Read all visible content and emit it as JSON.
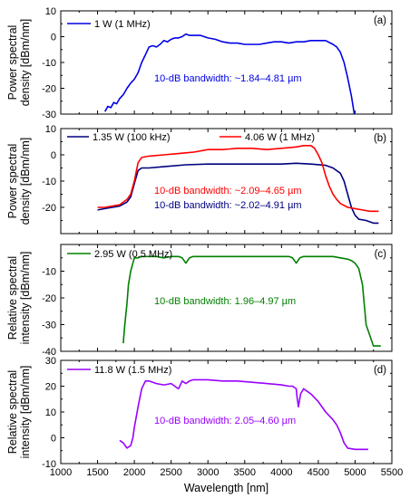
{
  "chart_data": [
    {
      "type": "line",
      "panel_label": "(a)",
      "ylabel": [
        "Power spectral",
        "density  [dBm/nm]"
      ],
      "xlim": [
        1000,
        5500
      ],
      "ylim": [
        -30,
        10
      ],
      "yticks": [
        10,
        0,
        -10,
        -20,
        -30
      ],
      "series": [
        {
          "name": "1 W (1 MHz)",
          "color": "#0000e6",
          "x": [
            1600,
            1640,
            1680,
            1720,
            1760,
            1800,
            1850,
            1900,
            1950,
            2000,
            2050,
            2100,
            2150,
            2200,
            2250,
            2300,
            2350,
            2400,
            2450,
            2500,
            2550,
            2600,
            2650,
            2700,
            2750,
            2800,
            2900,
            3000,
            3100,
            3200,
            3300,
            3400,
            3500,
            3600,
            3700,
            3800,
            3900,
            4000,
            4100,
            4200,
            4300,
            4400,
            4500,
            4600,
            4700,
            4750,
            4800,
            4850,
            4900,
            4950,
            4990
          ],
          "y": [
            -29,
            -27,
            -27.5,
            -25.5,
            -26,
            -24,
            -22.5,
            -20,
            -18,
            -16.5,
            -14,
            -10,
            -7,
            -4,
            -3.5,
            -4,
            -3,
            -1.5,
            -2,
            -1,
            -0.5,
            -0.5,
            0,
            1,
            0.5,
            0.5,
            0.5,
            -0.5,
            -1,
            -2,
            -2.5,
            -2.5,
            -3,
            -3,
            -3,
            -2.5,
            -2,
            -2,
            -2.5,
            -2,
            -2,
            -1.5,
            -1.5,
            -1.5,
            -3,
            -4,
            -6,
            -10,
            -16,
            -23,
            -30
          ]
        }
      ],
      "annotation": {
        "text": "10-dB bandwidth: ~1.84–4.81 µm",
        "color": "#0000e6"
      }
    },
    {
      "type": "line",
      "panel_label": "(b)",
      "ylabel": [
        "Power spectral",
        "density [dBm/nm]"
      ],
      "xlim": [
        1000,
        5500
      ],
      "ylim": [
        -30,
        10
      ],
      "yticks": [
        10,
        0,
        -10,
        -20
      ],
      "series": [
        {
          "name": "1.35 W (100 kHz)",
          "color": "#000080",
          "x": [
            1500,
            1600,
            1700,
            1800,
            1900,
            1950,
            2000,
            2050,
            2100,
            2200,
            2400,
            2700,
            3000,
            3500,
            4000,
            4200,
            4400,
            4600,
            4700,
            4800,
            4850,
            4900,
            4950,
            5000,
            5050,
            5150,
            5250,
            5320
          ],
          "y": [
            -21,
            -20.5,
            -20,
            -19.5,
            -18,
            -16,
            -11,
            -6,
            -5,
            -5,
            -4.5,
            -3.8,
            -3.5,
            -3.5,
            -3.5,
            -3.2,
            -3.5,
            -4,
            -5,
            -7,
            -10,
            -15,
            -20,
            -23,
            -24.5,
            -25,
            -26,
            -26
          ]
        },
        {
          "name": "4.06 W (1 MHz)",
          "color": "#ff0000",
          "x": [
            1500,
            1600,
            1700,
            1800,
            1900,
            1950,
            2000,
            2050,
            2100,
            2200,
            2400,
            2600,
            2800,
            3000,
            3200,
            3400,
            3600,
            3800,
            4000,
            4200,
            4300,
            4400,
            4450,
            4500,
            4550,
            4600,
            4650,
            4700,
            4750,
            4800,
            4900,
            5000,
            5100,
            5200,
            5320
          ],
          "y": [
            -20,
            -20,
            -19.5,
            -19,
            -17,
            -15,
            -10,
            -3,
            -1,
            -0.5,
            0,
            0.5,
            1,
            2,
            2,
            2.5,
            2.5,
            2,
            2.5,
            3,
            3.5,
            3.5,
            2.5,
            0,
            -3,
            -8,
            -12,
            -15,
            -17,
            -18.5,
            -20,
            -20.5,
            -21,
            -21.5,
            -21.5
          ]
        }
      ],
      "annotations": [
        {
          "text": "10-dB bandwidth: ~2.09–4.65 µm",
          "color": "#ff0000"
        },
        {
          "text": "10-dB bandwidth: ~2.02–4.91 µm",
          "color": "#000080"
        }
      ]
    },
    {
      "type": "line",
      "panel_label": "(c)",
      "ylabel": [
        "Relative spectral",
        "intensity [dBm/nm]"
      ],
      "xlim": [
        1000,
        5500
      ],
      "ylim": [
        -40,
        0
      ],
      "yticks": [
        -10,
        -20,
        -30,
        -40
      ],
      "series": [
        {
          "name": "2.95 W (0.5 MHz)",
          "color": "#008000",
          "x": [
            1850,
            1870,
            1900,
            1920,
            1950,
            1980,
            2000,
            2050,
            2100,
            2200,
            2300,
            2400,
            2500,
            2600,
            2650,
            2700,
            2750,
            2800,
            2900,
            3000,
            3200,
            3400,
            3600,
            3800,
            4000,
            4100,
            4150,
            4200,
            4250,
            4300,
            4400,
            4500,
            4600,
            4700,
            4800,
            4900,
            4950,
            5000,
            5050,
            5100,
            5150,
            5250,
            5350
          ],
          "y": [
            -37,
            -30,
            -22,
            -15,
            -10,
            -7,
            -5,
            -5,
            -4.5,
            -4.5,
            -4.5,
            -5,
            -4.5,
            -4.5,
            -5,
            -7,
            -5,
            -4.5,
            -4.5,
            -4.5,
            -4.5,
            -4.5,
            -4.5,
            -4.5,
            -4.5,
            -4.5,
            -5,
            -7,
            -5,
            -4.5,
            -4.5,
            -4.5,
            -4.5,
            -4.5,
            -5,
            -5.5,
            -6,
            -7,
            -9,
            -15,
            -30,
            -38,
            -38
          ]
        }
      ],
      "annotation": {
        "text": "10-dB bandwidth: 1.96–4.97 µm",
        "color": "#008000"
      }
    },
    {
      "type": "line",
      "panel_label": "(d)",
      "ylabel": [
        "Relative spectral",
        "intensity [dBm/nm]"
      ],
      "xlim": [
        1000,
        5500
      ],
      "ylim": [
        -10,
        30
      ],
      "yticks": [
        30,
        20,
        10,
        0,
        -10
      ],
      "xticks": [
        1000,
        1500,
        2000,
        2500,
        3000,
        3500,
        4000,
        4500,
        5000,
        5500
      ],
      "xlabel": "Wavelength [nm]",
      "series": [
        {
          "name": "11.8 W (1.5 MHz)",
          "color": "#9900ff",
          "x": [
            1800,
            1850,
            1900,
            1950,
            1980,
            2000,
            2050,
            2100,
            2150,
            2200,
            2300,
            2400,
            2500,
            2550,
            2600,
            2650,
            2700,
            2750,
            2800,
            2900,
            3000,
            3200,
            3400,
            3600,
            3800,
            4000,
            4100,
            4150,
            4200,
            4210,
            4230,
            4260,
            4300,
            4350,
            4400,
            4500,
            4600,
            4700,
            4750,
            4800,
            4850,
            4900,
            5000,
            5100,
            5180
          ],
          "y": [
            -1,
            -2,
            -4,
            -3,
            0,
            4,
            12,
            19,
            22,
            22,
            21,
            20.5,
            21,
            20,
            19,
            22,
            21,
            22,
            22.5,
            22.5,
            22.5,
            22,
            22,
            21.5,
            21,
            20.5,
            20,
            20,
            19,
            16,
            12,
            17,
            19,
            18,
            17,
            14,
            10,
            7,
            5,
            2,
            -2,
            -4,
            -4.5,
            -4.5,
            -4.5
          ]
        }
      ],
      "annotation": {
        "text": "10-dB bandwidth: 2.05–4.60 µm",
        "color": "#9900ff"
      }
    }
  ]
}
